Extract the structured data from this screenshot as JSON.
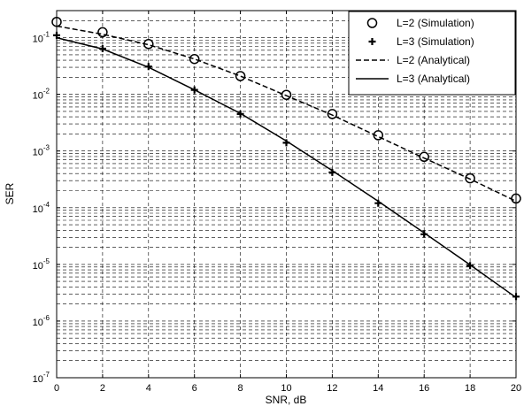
{
  "chart_data": {
    "type": "line",
    "title": "",
    "xlabel": "SNR, dB",
    "ylabel": "SER",
    "xlim": [
      0,
      20
    ],
    "ylim": [
      1e-07,
      0.3
    ],
    "yscale": "log",
    "grid": true,
    "legend_position": "top-right",
    "x_ticks": [
      0,
      2,
      4,
      6,
      8,
      10,
      12,
      14,
      16,
      18,
      20
    ],
    "y_ticks": [
      {
        "value": 1e-07,
        "base": "10",
        "exp": "-7"
      },
      {
        "value": 1e-06,
        "base": "10",
        "exp": "-6"
      },
      {
        "value": 1e-05,
        "base": "10",
        "exp": "-5"
      },
      {
        "value": 0.0001,
        "base": "10",
        "exp": "-4"
      },
      {
        "value": 0.001,
        "base": "10",
        "exp": "-3"
      },
      {
        "value": 0.01,
        "base": "10",
        "exp": "-2"
      },
      {
        "value": 0.1,
        "base": "10",
        "exp": "-1"
      }
    ],
    "series": [
      {
        "name": "L=2 (Simulation)",
        "style": "marker-circle",
        "x": [
          0,
          2,
          4,
          6,
          8,
          10,
          12,
          14,
          16,
          18,
          20
        ],
        "y": [
          0.19,
          0.125,
          0.077,
          0.042,
          0.021,
          0.0098,
          0.0045,
          0.0019,
          0.00079,
          0.00033,
          0.000145
        ]
      },
      {
        "name": "L=3 (Simulation)",
        "style": "marker-plus",
        "x": [
          0,
          2,
          4,
          6,
          8,
          10,
          12,
          14,
          16,
          18,
          20
        ],
        "y": [
          0.11,
          0.064,
          0.031,
          0.012,
          0.0045,
          0.0014,
          0.00042,
          0.00012,
          3.4e-05,
          9.5e-06,
          2.7e-06
        ]
      },
      {
        "name": "L=2 (Analytical)",
        "style": "dashed",
        "x": [
          0,
          2,
          4,
          6,
          8,
          10,
          12,
          14,
          16,
          18,
          20
        ],
        "y": [
          0.16,
          0.115,
          0.075,
          0.042,
          0.021,
          0.0095,
          0.0043,
          0.0018,
          0.00075,
          0.00032,
          0.00013
        ]
      },
      {
        "name": "L=3 (Analytical)",
        "style": "solid",
        "x": [
          0,
          2,
          4,
          6,
          8,
          10,
          12,
          14,
          16,
          18,
          20
        ],
        "y": [
          0.1,
          0.063,
          0.03,
          0.012,
          0.0046,
          0.0015,
          0.00045,
          0.00013,
          3.6e-05,
          9.8e-06,
          2.6e-06
        ]
      }
    ]
  }
}
